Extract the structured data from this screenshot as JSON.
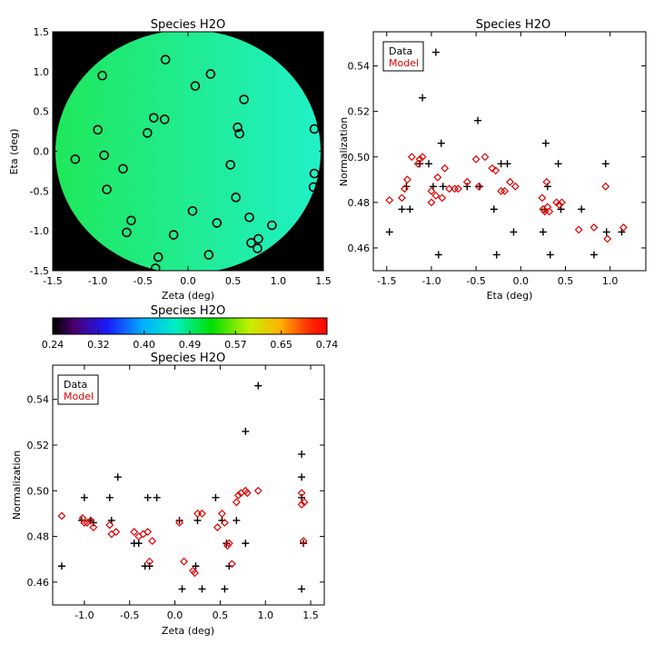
{
  "chart_data": [
    {
      "type": "scatter",
      "title": "Species H2O",
      "xlabel": "Zeta (deg)",
      "ylabel": "Eta (deg)",
      "xlim": [
        -1.5,
        1.5
      ],
      "ylim": [
        -1.5,
        1.5
      ],
      "xticks": [
        "-1.5",
        "-1.0",
        "-0.5",
        "0.0",
        "0.5",
        "1.0",
        "1.5"
      ],
      "yticks": [
        "-1.5",
        "-1.0",
        "-0.5",
        "0.0",
        "0.5",
        "1.0",
        "1.5"
      ],
      "background": "normalization map colored by colorbar (~0.50 left to ~0.45 right), black outside field",
      "map_colors": {
        "left": "#1fe85a",
        "right": "#20f0c8",
        "outside": "#000000"
      },
      "points": [
        [
          -1.25,
          -0.1
        ],
        [
          -0.95,
          0.95
        ],
        [
          -1.0,
          0.27
        ],
        [
          -0.93,
          -0.05
        ],
        [
          -0.9,
          -0.48
        ],
        [
          -0.72,
          -0.22
        ],
        [
          -0.63,
          -0.87
        ],
        [
          -0.68,
          -1.02
        ],
        [
          -0.45,
          0.23
        ],
        [
          -0.38,
          0.42
        ],
        [
          -0.25,
          1.15
        ],
        [
          -0.26,
          0.4
        ],
        [
          -0.33,
          -1.33
        ],
        [
          -0.36,
          -1.47
        ],
        [
          -0.16,
          -1.05
        ],
        [
          0.05,
          -0.75
        ],
        [
          0.08,
          0.82
        ],
        [
          0.25,
          0.97
        ],
        [
          0.23,
          -1.3
        ],
        [
          0.32,
          -0.9
        ],
        [
          0.47,
          -0.17
        ],
        [
          0.55,
          0.3
        ],
        [
          0.57,
          0.22
        ],
        [
          0.53,
          -0.58
        ],
        [
          0.62,
          0.65
        ],
        [
          0.68,
          -0.83
        ],
        [
          0.7,
          -1.15
        ],
        [
          0.77,
          -1.22
        ],
        [
          0.78,
          -1.1
        ],
        [
          0.93,
          -0.93
        ],
        [
          1.4,
          0.28
        ],
        [
          1.4,
          -0.28
        ],
        [
          1.39,
          -0.45
        ]
      ]
    },
    {
      "type": "colorbar",
      "title": "Species H2O",
      "ticks": [
        "0.24",
        "0.32",
        "0.40",
        "0.49",
        "0.57",
        "0.65",
        "0.74"
      ],
      "range": [
        0.24,
        0.74
      ]
    },
    {
      "type": "scatter",
      "title": "Species H2O",
      "xlabel": "Eta (deg)",
      "ylabel": "Normalization",
      "xlim": [
        -1.65,
        1.4
      ],
      "ylim": [
        0.45,
        0.555
      ],
      "xticks": [
        "-1.5",
        "-1.0",
        "-0.5",
        "0.0",
        "0.5",
        "1.0"
      ],
      "yticks": [
        "0.46",
        "0.48",
        "0.50",
        "0.52",
        "0.54"
      ],
      "legend": {
        "placement": "top-left",
        "entries": [
          "Data",
          "Model"
        ]
      },
      "series": [
        {
          "name": "Data",
          "marker": "plus",
          "color": "#000000",
          "points": [
            [
              -1.47,
              0.467
            ],
            [
              -1.33,
              0.477
            ],
            [
              -1.28,
              0.487
            ],
            [
              -1.24,
              0.477
            ],
            [
              -1.13,
              0.497
            ],
            [
              -1.1,
              0.526
            ],
            [
              -1.03,
              0.497
            ],
            [
              -0.98,
              0.487
            ],
            [
              -0.95,
              0.546
            ],
            [
              -0.92,
              0.457
            ],
            [
              -0.89,
              0.506
            ],
            [
              -0.87,
              0.487
            ],
            [
              -0.6,
              0.487
            ],
            [
              -0.48,
              0.516
            ],
            [
              -0.46,
              0.487
            ],
            [
              -0.3,
              0.477
            ],
            [
              -0.27,
              0.457
            ],
            [
              -0.22,
              0.497
            ],
            [
              -0.15,
              0.497
            ],
            [
              -0.08,
              0.467
            ],
            [
              0.25,
              0.467
            ],
            [
              0.27,
              0.477
            ],
            [
              0.28,
              0.506
            ],
            [
              0.3,
              0.487
            ],
            [
              0.33,
              0.457
            ],
            [
              0.42,
              0.497
            ],
            [
              0.45,
              0.477
            ],
            [
              0.68,
              0.477
            ],
            [
              0.82,
              0.457
            ],
            [
              0.95,
              0.497
            ],
            [
              0.96,
              0.467
            ],
            [
              1.13,
              0.467
            ]
          ]
        },
        {
          "name": "Model",
          "marker": "diamond",
          "color": "#dd0000",
          "points": [
            [
              -1.47,
              0.481
            ],
            [
              -1.33,
              0.482
            ],
            [
              -1.3,
              0.486
            ],
            [
              -1.27,
              0.49
            ],
            [
              -1.22,
              0.5
            ],
            [
              -1.15,
              0.497
            ],
            [
              -1.13,
              0.499
            ],
            [
              -1.1,
              0.5
            ],
            [
              -1.0,
              0.485
            ],
            [
              -1.0,
              0.48
            ],
            [
              -0.95,
              0.483
            ],
            [
              -0.93,
              0.491
            ],
            [
              -0.88,
              0.482
            ],
            [
              -0.85,
              0.495
            ],
            [
              -0.8,
              0.486
            ],
            [
              -0.74,
              0.486
            ],
            [
              -0.7,
              0.486
            ],
            [
              -0.6,
              0.489
            ],
            [
              -0.5,
              0.499
            ],
            [
              -0.47,
              0.487
            ],
            [
              -0.4,
              0.5
            ],
            [
              -0.32,
              0.495
            ],
            [
              -0.28,
              0.494
            ],
            [
              -0.22,
              0.485
            ],
            [
              -0.18,
              0.485
            ],
            [
              -0.12,
              0.489
            ],
            [
              -0.06,
              0.487
            ],
            [
              0.24,
              0.482
            ],
            [
              0.25,
              0.477
            ],
            [
              0.27,
              0.476
            ],
            [
              0.29,
              0.489
            ],
            [
              0.3,
              0.478
            ],
            [
              0.32,
              0.476
            ],
            [
              0.4,
              0.48
            ],
            [
              0.43,
              0.479
            ],
            [
              0.46,
              0.48
            ],
            [
              0.65,
              0.468
            ],
            [
              0.82,
              0.469
            ],
            [
              0.95,
              0.487
            ],
            [
              0.97,
              0.464
            ],
            [
              1.15,
              0.469
            ]
          ]
        }
      ]
    },
    {
      "type": "scatter",
      "title": "Species H2O",
      "xlabel": "Zeta (deg)",
      "ylabel": "Normalization",
      "xlim": [
        -1.35,
        1.65
      ],
      "ylim": [
        0.45,
        0.555
      ],
      "xticks": [
        "-1.0",
        "-0.5",
        "0.0",
        "0.5",
        "1.0",
        "1.5"
      ],
      "yticks": [
        "0.46",
        "0.48",
        "0.50",
        "0.52",
        "0.54"
      ],
      "legend": {
        "placement": "top-left",
        "entries": [
          "Data",
          "Model"
        ]
      },
      "series": [
        {
          "name": "Data",
          "marker": "plus",
          "color": "#000000",
          "points": [
            [
              -1.25,
              0.467
            ],
            [
              -1.03,
              0.487
            ],
            [
              -1.0,
              0.497
            ],
            [
              -0.93,
              0.487
            ],
            [
              -0.9,
              0.486
            ],
            [
              -0.72,
              0.497
            ],
            [
              -0.7,
              0.487
            ],
            [
              -0.63,
              0.506
            ],
            [
              -0.45,
              0.477
            ],
            [
              -0.4,
              0.477
            ],
            [
              -0.33,
              0.467
            ],
            [
              -0.3,
              0.497
            ],
            [
              -0.28,
              0.467
            ],
            [
              -0.2,
              0.497
            ],
            [
              0.05,
              0.487
            ],
            [
              0.08,
              0.457
            ],
            [
              0.23,
              0.467
            ],
            [
              0.25,
              0.487
            ],
            [
              0.3,
              0.457
            ],
            [
              0.45,
              0.497
            ],
            [
              0.52,
              0.487
            ],
            [
              0.55,
              0.457
            ],
            [
              0.57,
              0.477
            ],
            [
              0.6,
              0.467
            ],
            [
              0.68,
              0.487
            ],
            [
              0.78,
              0.477
            ],
            [
              0.78,
              0.526
            ],
            [
              0.92,
              0.546
            ],
            [
              1.4,
              0.516
            ],
            [
              1.4,
              0.506
            ],
            [
              1.4,
              0.497
            ],
            [
              1.4,
              0.457
            ],
            [
              1.42,
              0.477
            ]
          ]
        },
        {
          "name": "Model",
          "marker": "diamond",
          "color": "#dd0000",
          "points": [
            [
              -1.25,
              0.489
            ],
            [
              -1.02,
              0.488
            ],
            [
              -1.0,
              0.486
            ],
            [
              -0.97,
              0.486
            ],
            [
              -0.93,
              0.487
            ],
            [
              -0.9,
              0.484
            ],
            [
              -0.72,
              0.485
            ],
            [
              -0.7,
              0.481
            ],
            [
              -0.65,
              0.482
            ],
            [
              -0.45,
              0.482
            ],
            [
              -0.4,
              0.48
            ],
            [
              -0.35,
              0.481
            ],
            [
              -0.3,
              0.482
            ],
            [
              -0.28,
              0.469
            ],
            [
              -0.25,
              0.478
            ],
            [
              0.05,
              0.486
            ],
            [
              0.1,
              0.469
            ],
            [
              0.2,
              0.465
            ],
            [
              0.22,
              0.464
            ],
            [
              0.25,
              0.49
            ],
            [
              0.3,
              0.49
            ],
            [
              0.47,
              0.484
            ],
            [
              0.52,
              0.49
            ],
            [
              0.55,
              0.486
            ],
            [
              0.58,
              0.476
            ],
            [
              0.6,
              0.477
            ],
            [
              0.63,
              0.468
            ],
            [
              0.68,
              0.495
            ],
            [
              0.7,
              0.498
            ],
            [
              0.73,
              0.499
            ],
            [
              0.78,
              0.5
            ],
            [
              0.8,
              0.499
            ],
            [
              0.92,
              0.5
            ],
            [
              1.4,
              0.499
            ],
            [
              1.4,
              0.494
            ],
            [
              1.42,
              0.478
            ],
            [
              1.43,
              0.495
            ]
          ]
        }
      ]
    }
  ]
}
